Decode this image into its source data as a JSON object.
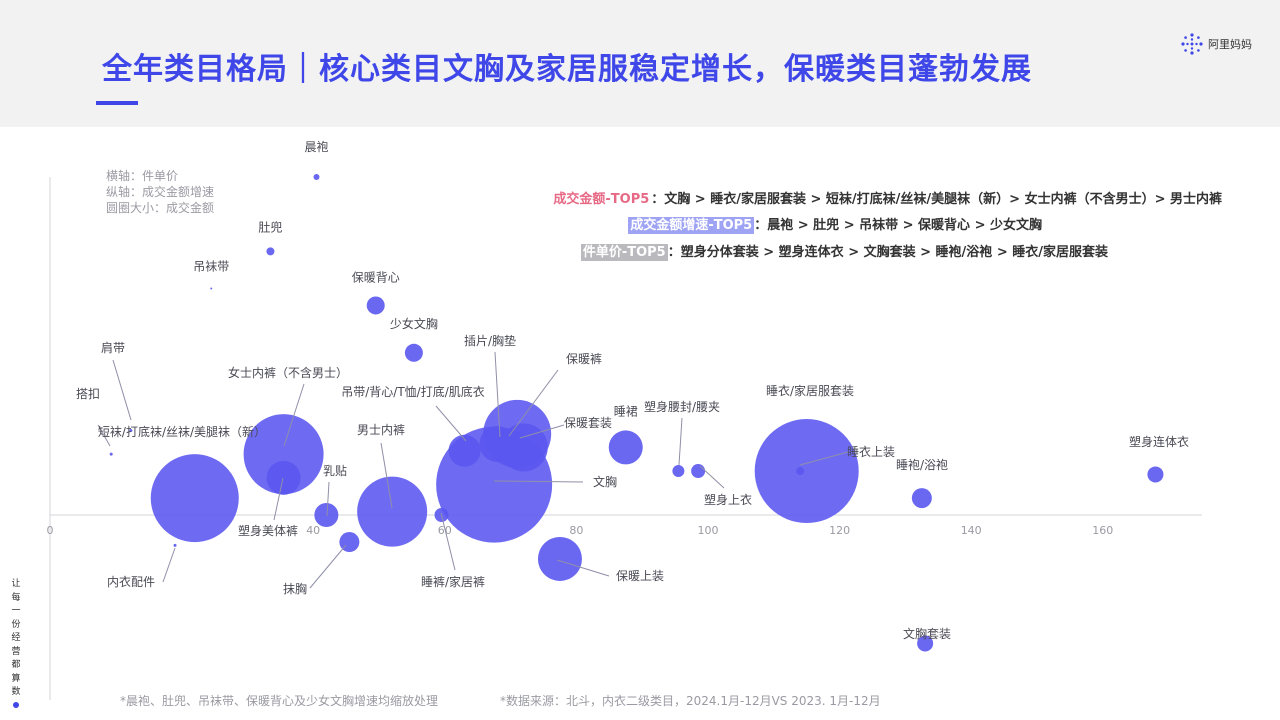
{
  "header": {
    "title": "全年类目格局｜核心类目文胸及家居服稳定增长，保暖类目蓬勃发展",
    "logo_text": "阿里妈妈",
    "logo_icon": "alimama-star-icon"
  },
  "legend_notes": {
    "x_axis": "横轴：件单价",
    "y_axis": "纵轴：成交金额增速",
    "bubble_size": "圆圈大小：成交金额"
  },
  "top5": [
    {
      "tag": "成交金额-TOP5",
      "text": "：文胸 > 睡衣/家居服套装 > 短袜/打底袜/丝袜/美腿袜（新）> 女士内裤（不含男士）> 男士内裤"
    },
    {
      "tag": "成交金额增速-TOP5",
      "text": "：晨袍 > 肚兜 > 吊袜带 > 保暖背心 > 少女文胸"
    },
    {
      "tag": "件单价-TOP5",
      "text": "：塑身分体套装 > 塑身连体衣 > 文胸套装 > 睡袍/浴袍 > 睡衣/家居服套装"
    }
  ],
  "chart_data": {
    "type": "scatter",
    "title": "",
    "xlabel": "件单价",
    "ylabel": "成交金额增速",
    "size_label": "成交金额",
    "xlim": [
      0,
      175
    ],
    "x_ticks": [
      0,
      20,
      40,
      60,
      80,
      100,
      120,
      140,
      160
    ],
    "x_tick_labels": [
      "0",
      "",
      "40",
      "60",
      "80",
      "100",
      "120",
      "140",
      "160"
    ],
    "y_axis_ticks_shown": false,
    "grid": false,
    "legend": "none",
    "colors": {
      "bubble": "#5a57f0",
      "title": "#3f47e8"
    },
    "points": [
      {
        "label": "晨袍",
        "x": 40.5,
        "y": 1.0,
        "r": 3
      },
      {
        "label": "肚兜",
        "x": 33.5,
        "y": 0.78,
        "r": 4
      },
      {
        "label": "吊袜带",
        "x": 24.5,
        "y": 0.67,
        "r": 1
      },
      {
        "label": "保暖背心",
        "x": 49.5,
        "y": 0.62,
        "r": 9
      },
      {
        "label": "少女文胸",
        "x": 55.3,
        "y": 0.48,
        "r": 9
      },
      {
        "label": "肩带",
        "x": 12.3,
        "y": 0.25,
        "r": 1.5
      },
      {
        "label": "搭扣",
        "x": 9.3,
        "y": 0.18,
        "r": 1.5
      },
      {
        "label": "女士内裤（不含男士）",
        "x": 35.5,
        "y": 0.18,
        "r": 40
      },
      {
        "label": "短袜/打底袜/丝袜/美腿袜（新）",
        "x": 22,
        "y": 0.05,
        "r": 44
      },
      {
        "label": "塑身美体裤",
        "x": 35.5,
        "y": 0.11,
        "r": 17
      },
      {
        "label": "乳贴",
        "x": 42,
        "y": 0.0,
        "r": 12
      },
      {
        "label": "男士内裤",
        "x": 52,
        "y": 0.01,
        "r": 35
      },
      {
        "label": "吊带/背心/T恤/打底/肌底衣",
        "x": 63,
        "y": 0.19,
        "r": 16
      },
      {
        "label": "插片/胸垫",
        "x": 68,
        "y": 0.21,
        "r": 18
      },
      {
        "label": "保暖裤",
        "x": 71,
        "y": 0.24,
        "r": 34
      },
      {
        "label": "保暖套装",
        "x": 72,
        "y": 0.2,
        "r": 24
      },
      {
        "label": "文胸",
        "x": 67.5,
        "y": 0.09,
        "r": 58
      },
      {
        "label": "睡裤/家居裤",
        "x": 59.5,
        "y": 0.0,
        "r": 7
      },
      {
        "label": "抹胸",
        "x": 45.5,
        "y": -0.08,
        "r": 10
      },
      {
        "label": "内衣配件",
        "x": 19,
        "y": -0.09,
        "r": 1.5
      },
      {
        "label": "保暖上装",
        "x": 77.5,
        "y": -0.13,
        "r": 22
      },
      {
        "label": "睡裙",
        "x": 87.5,
        "y": 0.2,
        "r": 17
      },
      {
        "label": "塑身腰封/腰夹",
        "x": 95.5,
        "y": 0.13,
        "r": 6
      },
      {
        "label": "塑身上衣",
        "x": 98.5,
        "y": 0.13,
        "r": 7
      },
      {
        "label": "睡衣/家居服套装",
        "x": 115,
        "y": 0.13,
        "r": 52
      },
      {
        "label": "睡衣上装",
        "x": 114,
        "y": 0.13,
        "r": 4
      },
      {
        "label": "睡袍/浴袍",
        "x": 132.5,
        "y": 0.05,
        "r": 10
      },
      {
        "label": "塑身连体衣",
        "x": 168,
        "y": 0.12,
        "r": 8
      },
      {
        "label": "文胸套装",
        "x": 133,
        "y": -0.38,
        "r": 8
      }
    ]
  },
  "slogan_vertical": [
    "让",
    "每",
    "一",
    "份",
    "经",
    "营",
    "都",
    "算",
    "数"
  ],
  "footnotes": {
    "scaling": "*晨袍、肚兜、吊袜带、保暖背心及少女文胸增速均缩放处理",
    "source": "*数据来源：北斗，内衣二级类目，2024.1月-12月VS 2023. 1月-12月"
  }
}
